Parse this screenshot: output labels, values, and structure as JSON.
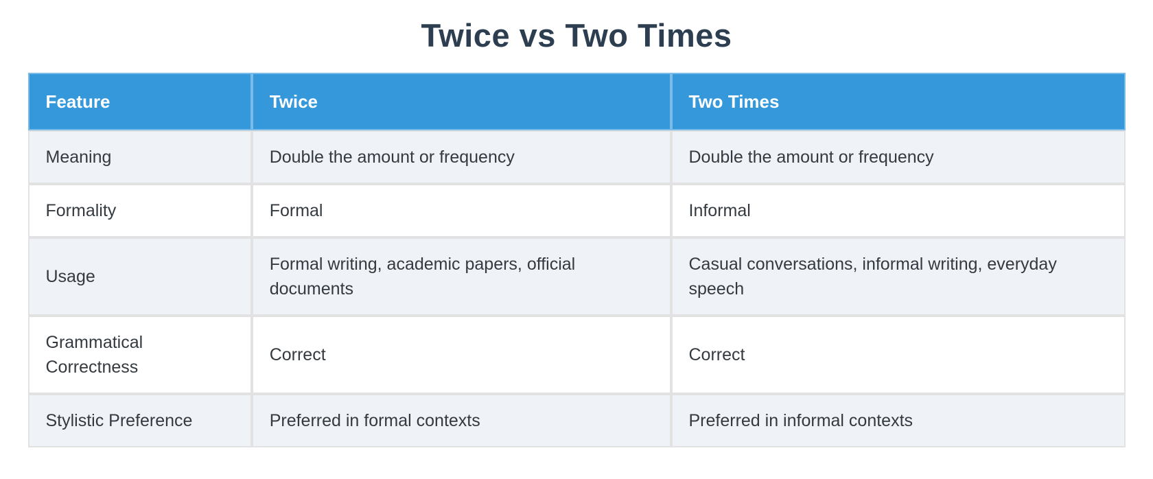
{
  "page": {
    "title": "Twice vs Two Times"
  },
  "chart_data": {
    "type": "table",
    "title": "Twice vs Two Times",
    "columns": [
      "Feature",
      "Twice",
      "Two Times"
    ],
    "rows": [
      [
        "Meaning",
        "Double the amount or frequency",
        "Double the amount or frequency"
      ],
      [
        "Formality",
        "Formal",
        "Informal"
      ],
      [
        "Usage",
        "Formal writing, academic papers, official documents",
        "Casual conversations, informal writing, everyday speech"
      ],
      [
        "Grammatical Correctness",
        "Correct",
        "Correct"
      ],
      [
        "Stylistic Preference",
        "Preferred in formal contexts",
        "Preferred in informal contexts"
      ]
    ],
    "layout": {
      "header_position": "top",
      "striping": "rows 1, 3, 5 shaded light blue-gray; rows 2, 4 white",
      "text_align": "left"
    },
    "colors": {
      "header_bg": "#3498db",
      "header_text": "#ffffff",
      "stripe_row_bg": "#eff2f7",
      "plain_row_bg": "#ffffff",
      "cell_border": "#e2e2e2",
      "title_text": "#2c3e50",
      "body_text": "#343a40"
    }
  }
}
